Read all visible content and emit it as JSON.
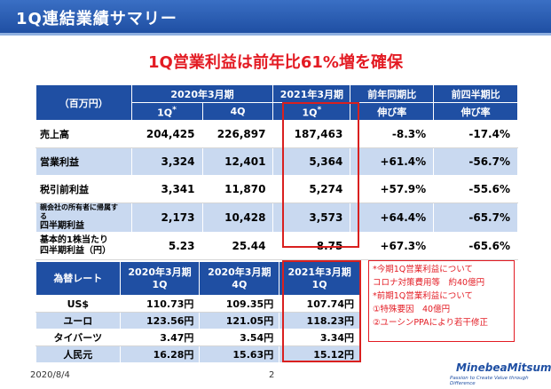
{
  "title": "1Q連結業績サマリー",
  "headline": "1Q営業利益は前年比61%増を確保",
  "main_table": {
    "unit_label": "（百万円）",
    "period_fy2020": "2020年3月期",
    "period_fy2021": "2021年3月期",
    "col_1q": "1Q",
    "col_1q_mark": "*",
    "col_4q": "4Q",
    "col_1q_2021": "1Q",
    "yoy_header": "前年同期比",
    "yoy_sub": "伸び率",
    "qoq_header": "前四半期比",
    "qoq_sub": "伸び率",
    "rows": [
      {
        "label": "売上高",
        "v1": "204,425",
        "v2": "226,897",
        "v3": "187,463",
        "yoy": "-8.3%",
        "qoq": "-17.4%"
      },
      {
        "label": "営業利益",
        "v1": "3,324",
        "v2": "12,401",
        "v3": "5,364",
        "yoy": "+61.4%",
        "qoq": "-56.7%"
      },
      {
        "label": "税引前利益",
        "v1": "3,341",
        "v2": "11,870",
        "v3": "5,274",
        "yoy": "+57.9%",
        "qoq": "-55.6%"
      },
      {
        "label_line1": "親会社の所有者に帰属する",
        "label_line2": "四半期利益",
        "v1": "2,173",
        "v2": "10,428",
        "v3": "3,573",
        "yoy": "+64.4%",
        "qoq": "-65.7%"
      },
      {
        "label_line1": "基本的1株当たり",
        "label_line2": "四半期利益（円）",
        "v1": "5.23",
        "v2": "25.44",
        "v3": "8.75",
        "yoy": "+67.3%",
        "qoq": "-65.6%"
      }
    ]
  },
  "fx_table": {
    "header_label": "為替レート",
    "col1_line1": "2020年3月期",
    "col1_line2": "1Q",
    "col2_line1": "2020年3月期",
    "col2_line2": "4Q",
    "col3_line1": "2021年3月期",
    "col3_line2": "1Q",
    "rows": [
      {
        "cur": "US$",
        "v1": "110.73円",
        "v2": "109.35円",
        "v3": "107.74円"
      },
      {
        "cur": "ユーロ",
        "v1": "123.56円",
        "v2": "121.05円",
        "v3": "118.23円"
      },
      {
        "cur": "タイバーツ",
        "v1": "3.47円",
        "v2": "3.54円",
        "v3": "3.34円"
      },
      {
        "cur": "人民元",
        "v1": "16.28円",
        "v2": "15.63円",
        "v3": "15.12円"
      }
    ]
  },
  "notes": [
    "*今期1Q営業利益について",
    "コロナ対策費用等　約40億円",
    "*前期1Q営業利益について",
    "①特殊要因　40億円",
    "②ユーシンPPAにより若干修正"
  ],
  "footer": {
    "date": "2020/8/4",
    "page": "2",
    "logo": "MinebeaMitsumi",
    "tagline": "Passion to Create Value through Difference"
  },
  "colors": {
    "header_blue": "#1f4fa3",
    "row_blue": "#c9d9f0",
    "accent_red": "#e31b23"
  }
}
